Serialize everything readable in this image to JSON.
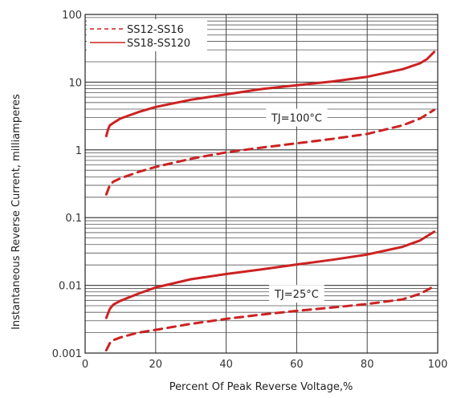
{
  "chart_data": {
    "type": "line",
    "title": "",
    "xlabel": "Percent Of Peak Reverse Voltage,%",
    "ylabel": "Instantaneous Reverse Current, milliamperes",
    "xlim": [
      0,
      100
    ],
    "ylim": [
      0.001,
      100
    ],
    "yscale": "log",
    "grid": true,
    "legend_position": "top-left",
    "x_ticks": [
      "0",
      "20",
      "40",
      "60",
      "80",
      "100"
    ],
    "y_ticks": [
      "0.001",
      "0.01",
      "0.1",
      "1",
      "10",
      "100"
    ],
    "series": [
      {
        "name": "SS12-SS16",
        "style": "dashed",
        "color": "#cc2222",
        "condition": "TJ=100°C",
        "x": [
          6,
          7,
          8,
          10,
          15,
          20,
          30,
          40,
          50,
          60,
          70,
          80,
          90,
          95,
          99
        ],
        "y": [
          0.22,
          0.3,
          0.34,
          0.38,
          0.47,
          0.56,
          0.74,
          0.92,
          1.08,
          1.25,
          1.45,
          1.72,
          2.3,
          2.9,
          3.9
        ]
      },
      {
        "name": "SS18-SS120",
        "style": "solid",
        "color": "#cc2222",
        "condition": "TJ=100°C",
        "x": [
          6,
          6.5,
          7,
          8,
          10,
          15,
          20,
          30,
          40,
          50,
          60,
          70,
          80,
          90,
          95,
          97,
          99
        ],
        "y": [
          1.6,
          2.0,
          2.3,
          2.5,
          2.9,
          3.6,
          4.3,
          5.5,
          6.6,
          7.9,
          9.0,
          10.2,
          12.0,
          15.5,
          19.0,
          22.0,
          28.0
        ]
      },
      {
        "name": "SS12-SS16",
        "style": "dashed",
        "color": "#cc2222",
        "condition": "TJ=25°C",
        "x": [
          6,
          7,
          8,
          10,
          15,
          20,
          30,
          40,
          50,
          60,
          70,
          80,
          90,
          95,
          99
        ],
        "y": [
          0.0011,
          0.0014,
          0.00155,
          0.0017,
          0.002,
          0.0022,
          0.0027,
          0.0032,
          0.0037,
          0.0042,
          0.0047,
          0.0053,
          0.0062,
          0.0075,
          0.0097
        ]
      },
      {
        "name": "SS18-SS120",
        "style": "solid",
        "color": "#cc2222",
        "condition": "TJ=25°C",
        "x": [
          6,
          7,
          8,
          10,
          15,
          20,
          30,
          40,
          50,
          60,
          70,
          80,
          90,
          95,
          99
        ],
        "y": [
          0.0033,
          0.0045,
          0.0052,
          0.0059,
          0.0075,
          0.0093,
          0.0123,
          0.0147,
          0.0172,
          0.0203,
          0.0238,
          0.0285,
          0.037,
          0.046,
          0.062
        ]
      }
    ],
    "annotations": [
      {
        "text": "TJ=100°C",
        "x": 60,
        "y": 3.0
      },
      {
        "text": "TJ=25°C",
        "x": 60,
        "y": 0.0075
      }
    ]
  },
  "legend": {
    "items": [
      {
        "label": "SS12-SS16",
        "style": "dashed"
      },
      {
        "label": "SS18-SS120",
        "style": "solid"
      }
    ]
  }
}
